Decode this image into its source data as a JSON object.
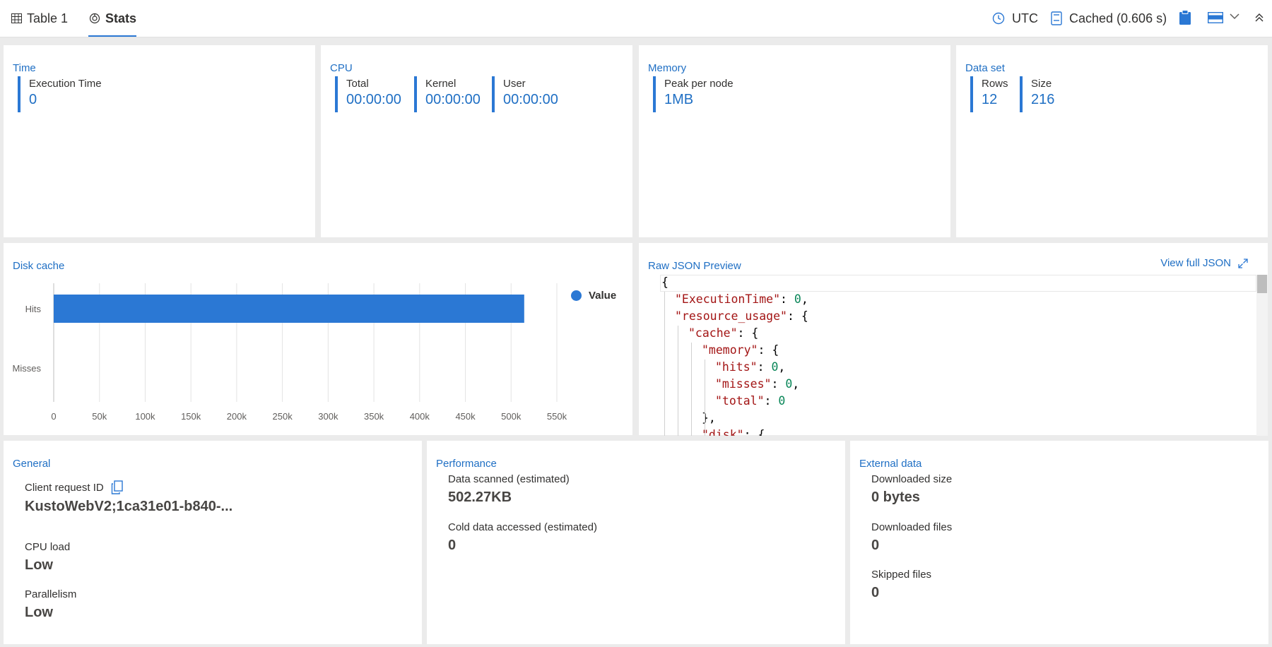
{
  "tabs": [
    {
      "label": "Table 1",
      "icon": "table-icon"
    },
    {
      "label": "Stats",
      "icon": "stats-icon",
      "active": true
    }
  ],
  "toolbar": {
    "timezone": "UTC",
    "cache_status": "Cached (0.606 s)"
  },
  "time": {
    "title": "Time",
    "execution_label": "Execution Time",
    "execution_value": "0"
  },
  "cpu": {
    "title": "CPU",
    "total_label": "Total",
    "total_value": "00:00:00",
    "kernel_label": "Kernel",
    "kernel_value": "00:00:00",
    "user_label": "User",
    "user_value": "00:00:00"
  },
  "memory": {
    "title": "Memory",
    "peak_label": "Peak per node",
    "peak_value": "1MB"
  },
  "dataset": {
    "title": "Data set",
    "rows_label": "Rows",
    "rows_value": "12",
    "size_label": "Size",
    "size_value": "216"
  },
  "disk_cache": {
    "title": "Disk cache",
    "legend": "Value"
  },
  "chart_data": {
    "type": "bar",
    "orientation": "horizontal",
    "categories": [
      "Hits",
      "Misses"
    ],
    "series": [
      {
        "name": "Value",
        "values": [
          514320,
          0
        ]
      }
    ],
    "xlim": [
      0,
      550000
    ],
    "xticks": [
      "0",
      "50k",
      "100k",
      "150k",
      "200k",
      "250k",
      "300k",
      "350k",
      "400k",
      "450k",
      "500k",
      "550k"
    ],
    "tick_values": [
      0,
      50000,
      100000,
      150000,
      200000,
      250000,
      300000,
      350000,
      400000,
      450000,
      500000,
      550000
    ],
    "grid": true,
    "legend_position": "top-right",
    "color": "#2b78d4"
  },
  "json_preview": {
    "title": "Raw JSON Preview",
    "view_full_label": "View full JSON",
    "lines": [
      {
        "indent": 0,
        "key": "",
        "value": "",
        "punct": "{"
      },
      {
        "indent": 1,
        "key": "\"ExecutionTime\"",
        "value": "0",
        "punct": ","
      },
      {
        "indent": 1,
        "key": "\"resource_usage\"",
        "value": "",
        "punct": ": {"
      },
      {
        "indent": 2,
        "key": "\"cache\"",
        "value": "",
        "punct": ": {"
      },
      {
        "indent": 3,
        "key": "\"memory\"",
        "value": "",
        "punct": ": {"
      },
      {
        "indent": 4,
        "key": "\"hits\"",
        "value": "0",
        "punct": ","
      },
      {
        "indent": 4,
        "key": "\"misses\"",
        "value": "0",
        "punct": ","
      },
      {
        "indent": 4,
        "key": "\"total\"",
        "value": "0",
        "punct": ""
      },
      {
        "indent": 3,
        "key": "",
        "value": "",
        "punct": "},"
      },
      {
        "indent": 3,
        "key": "\"disk\"",
        "value": "",
        "punct": ": {"
      }
    ]
  },
  "general": {
    "title": "General",
    "client_request_label": "Client request ID",
    "client_request_value": "KustoWebV2;1ca31e01-b840-...",
    "cpu_load_label": "CPU load",
    "cpu_load_value": "Low",
    "parallelism_label": "Parallelism",
    "parallelism_value": "Low"
  },
  "performance": {
    "title": "Performance",
    "scanned_label": "Data scanned (estimated)",
    "scanned_value": "502.27KB",
    "cold_label": "Cold data accessed (estimated)",
    "cold_value": "0"
  },
  "external": {
    "title": "External data",
    "downloaded_size_label": "Downloaded size",
    "downloaded_size_value": "0 bytes",
    "downloaded_files_label": "Downloaded files",
    "downloaded_files_value": "0",
    "skipped_files_label": "Skipped files",
    "skipped_files_value": "0"
  }
}
